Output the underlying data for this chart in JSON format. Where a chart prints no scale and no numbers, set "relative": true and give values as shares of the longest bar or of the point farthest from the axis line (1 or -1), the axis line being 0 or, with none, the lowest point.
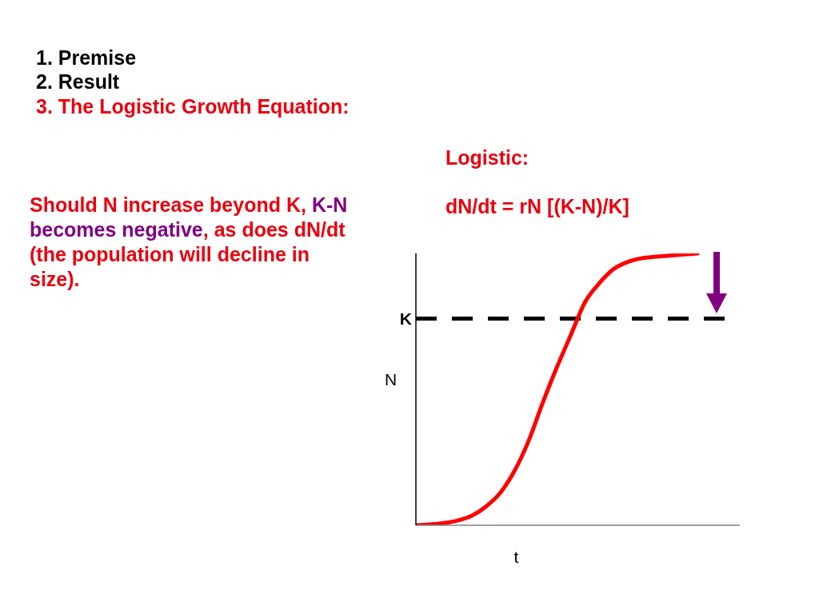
{
  "chart_data": {
    "type": "line",
    "relative": true,
    "categories": [
      null,
      null,
      null,
      null,
      null,
      null,
      null,
      null,
      null,
      null,
      null,
      null,
      null,
      null,
      null,
      null,
      null,
      null,
      null,
      null,
      null,
      null,
      null,
      null
    ],
    "values": [
      0,
      0.003,
      0.008,
      0.018,
      0.036,
      0.07,
      0.12,
      0.2,
      0.31,
      0.45,
      0.58,
      0.7,
      0.82,
      0.889,
      0.941,
      0.968,
      0.982,
      0.988,
      0.992,
      0.996,
      1,
      null,
      null,
      null
    ],
    "color": "#ff0000",
    "marker": "none",
    "xlabel": "t",
    "ylabel": "N",
    "ref_lines": [
      {
        "axis": "y",
        "value": 0.76,
        "label": "K",
        "color": "#000000",
        "line_style": "dashed"
      }
    ],
    "annotations": [
      "1. Premise",
      "2. Result",
      "3. The Logistic Growth Equation:",
      "Should N increase beyond K,",
      "K-N becomes negative",
      ", as does dN/dt (the population will decline in size).",
      "Logistic:",
      "dN/dt = rN [(K-N)/K]"
    ]
  }
}
